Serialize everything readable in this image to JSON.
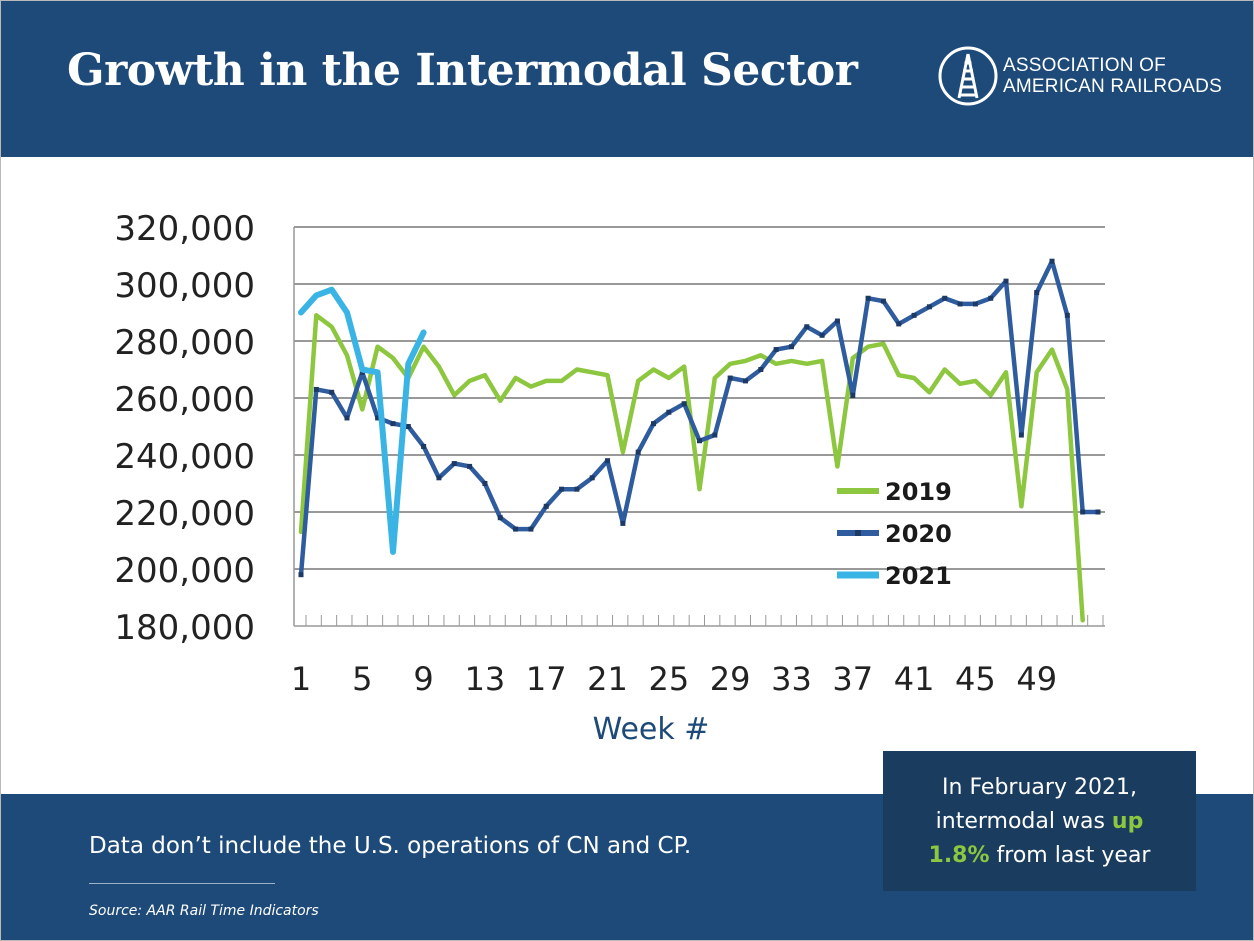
{
  "header": {
    "title": "Growth in the Intermodal Sector",
    "logo_line1": "ASSOCIATION OF",
    "logo_line2": "AMERICAN RAILROADS"
  },
  "colors": {
    "header_bg": "#1d4a78",
    "callout_bg": "#193c5f",
    "series_2019": "#8dc63f",
    "series_2020": "#2e5c9e",
    "series_2021": "#3ab4e5",
    "highlight": "#8dc63f"
  },
  "footer": {
    "note": "Data don’t include the U.S. operations of CN and CP.",
    "source": "Source: AAR Rail Time Indicators"
  },
  "callout": {
    "line1": "In February 2021,",
    "line2_pre": "intermodal was ",
    "line2_hl": "up",
    "line3_hl": "1.8%",
    "line3_post": " from last year"
  },
  "chart_data": {
    "type": "line",
    "xlabel": "Week #",
    "ylabel": "",
    "ylim": [
      180000,
      320000
    ],
    "xlim": [
      1,
      53
    ],
    "y_ticks": [
      180000,
      200000,
      220000,
      240000,
      260000,
      280000,
      300000,
      320000
    ],
    "y_tick_labels": [
      "180,000",
      "200,000",
      "220,000",
      "240,000",
      "260,000",
      "280,000",
      "300,000",
      "320,000"
    ],
    "x_ticks": [
      1,
      5,
      9,
      13,
      17,
      21,
      25,
      29,
      33,
      37,
      41,
      45,
      49
    ],
    "x_tick_labels": [
      "1",
      "5",
      "9",
      "13",
      "17",
      "21",
      "25",
      "29",
      "33",
      "37",
      "41",
      "45",
      "49"
    ],
    "grid": "horizontal",
    "legend": "right",
    "series": [
      {
        "name": "2019",
        "color": "#8dc63f",
        "x": [
          1,
          2,
          3,
          4,
          5,
          6,
          7,
          8,
          9,
          10,
          11,
          12,
          13,
          14,
          15,
          16,
          17,
          18,
          19,
          20,
          21,
          22,
          23,
          24,
          25,
          26,
          27,
          28,
          29,
          30,
          31,
          32,
          33,
          34,
          35,
          36,
          37,
          38,
          39,
          40,
          41,
          42,
          43,
          44,
          45,
          46,
          47,
          48,
          49,
          50,
          51,
          52
        ],
        "values": [
          213000,
          289000,
          285000,
          275000,
          256000,
          278000,
          274000,
          267000,
          278000,
          271000,
          261000,
          266000,
          268000,
          259000,
          267000,
          264000,
          266000,
          266000,
          270000,
          269000,
          268000,
          241000,
          266000,
          270000,
          267000,
          271000,
          228000,
          267000,
          272000,
          273000,
          275000,
          272000,
          273000,
          272000,
          273000,
          236000,
          274000,
          278000,
          279000,
          268000,
          267000,
          262000,
          270000,
          265000,
          266000,
          261000,
          269000,
          222000,
          269000,
          277000,
          263000,
          182000
        ]
      },
      {
        "name": "2020",
        "color": "#2e5c9e",
        "x": [
          1,
          2,
          3,
          4,
          5,
          6,
          7,
          8,
          9,
          10,
          11,
          12,
          13,
          14,
          15,
          16,
          17,
          18,
          19,
          20,
          21,
          22,
          23,
          24,
          25,
          26,
          27,
          28,
          29,
          30,
          31,
          32,
          33,
          34,
          35,
          36,
          37,
          38,
          39,
          40,
          41,
          42,
          43,
          44,
          45,
          46,
          47,
          48,
          49,
          50,
          51,
          52,
          53
        ],
        "values": [
          198000,
          263000,
          262000,
          253000,
          269000,
          253000,
          251000,
          250000,
          243000,
          232000,
          237000,
          236000,
          230000,
          218000,
          214000,
          214000,
          222000,
          228000,
          228000,
          232000,
          238000,
          216000,
          241000,
          251000,
          255000,
          258000,
          245000,
          247000,
          267000,
          266000,
          270000,
          277000,
          278000,
          285000,
          282000,
          287000,
          261000,
          295000,
          294000,
          286000,
          289000,
          292000,
          295000,
          293000,
          293000,
          295000,
          301000,
          247000,
          297000,
          308000,
          289000,
          220000,
          220000
        ]
      },
      {
        "name": "2021",
        "color": "#3ab4e5",
        "x": [
          1,
          2,
          3,
          4,
          5,
          6,
          7,
          8,
          9
        ],
        "values": [
          290000,
          296000,
          298000,
          290000,
          270000,
          269000,
          206000,
          272000,
          283000
        ]
      }
    ]
  }
}
